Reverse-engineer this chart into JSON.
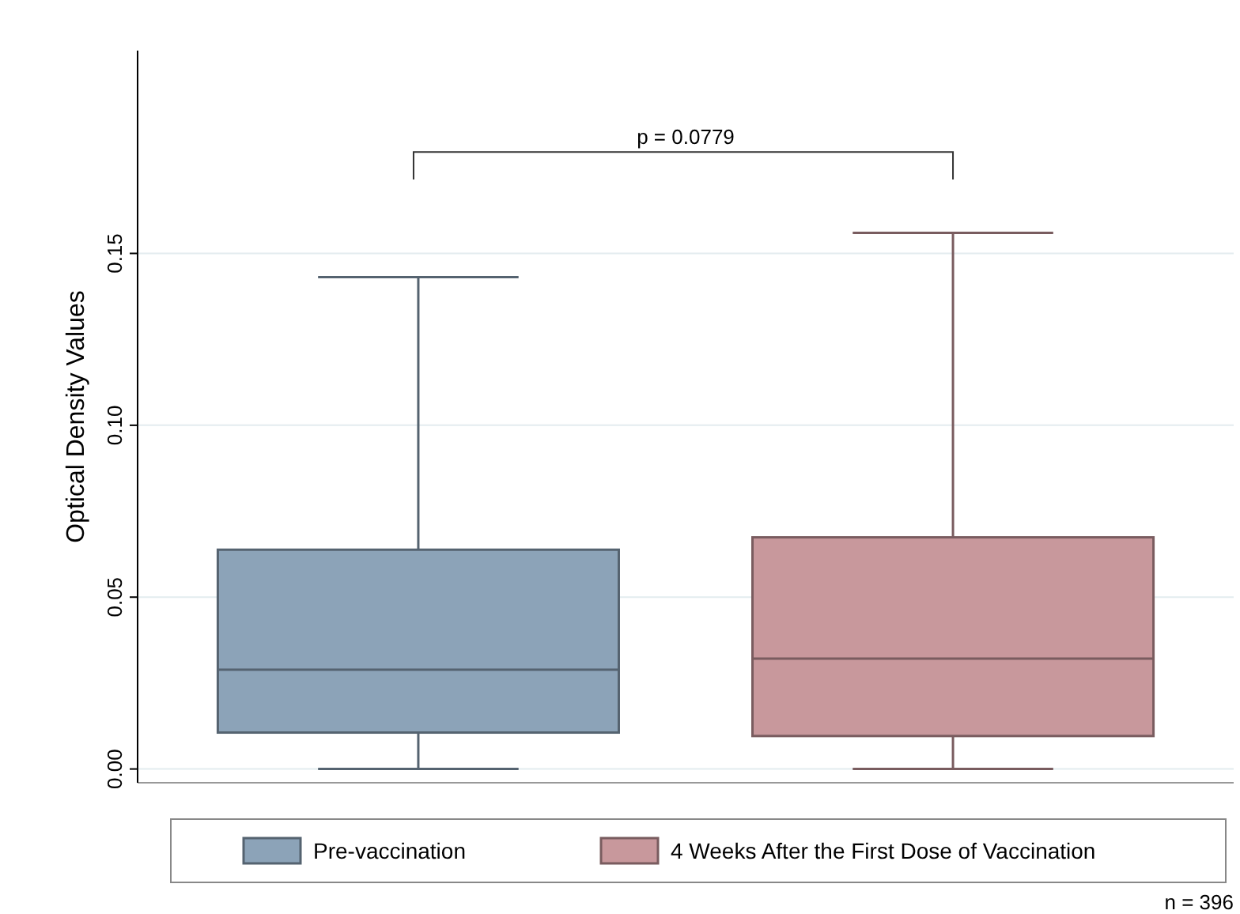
{
  "chart_data": {
    "type": "box",
    "ylabel": "Optical Density Values",
    "categories": [
      null,
      null
    ],
    "series": [
      {
        "name": "Pre-vaccination",
        "color": "#8ca3b8",
        "boxes": [
          {
            "low": 0,
            "q1": 0.0106,
            "median": 0.0289,
            "q3": 0.0638,
            "high": 0.1431
          },
          null
        ]
      },
      {
        "name": "4 Weeks After the First Dose of Vaccination",
        "color": "#c8989c",
        "boxes": [
          null,
          {
            "low": 0,
            "q1": 0.0096,
            "median": 0.0321,
            "q3": 0.0674,
            "high": 0.156
          }
        ]
      }
    ],
    "ylim": [
      -0.004,
      0.209
    ],
    "yticks": [
      {
        "value": 0,
        "label": "0.00"
      },
      {
        "value": 0.05,
        "label": "0.05"
      },
      {
        "value": 0.1,
        "label": "0.10"
      },
      {
        "value": 0.15,
        "label": "0.15"
      }
    ],
    "grid": "y",
    "legend": "bottom",
    "annotations": [
      "p = 0.0779",
      "n = 396"
    ]
  }
}
